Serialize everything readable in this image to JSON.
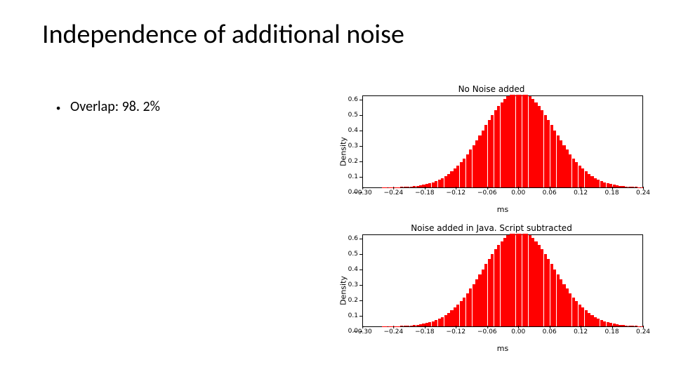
{
  "title": "Independence of additional noise",
  "bullet": {
    "overlap_label": "Overlap: 98. 2%"
  },
  "charts": {
    "xlim": [
      -0.3,
      0.24
    ],
    "ylim": [
      0.0,
      0.6
    ],
    "xlabel": "ms",
    "ylabel": "Density",
    "xticks": [
      -0.3,
      -0.24,
      -0.18,
      -0.12,
      -0.06,
      0.0,
      0.06,
      0.12,
      0.18,
      0.24
    ],
    "yticks": [
      0.0,
      0.1,
      0.2,
      0.3,
      0.4,
      0.5,
      0.6
    ],
    "bar_color": "#ff0000",
    "background_color": "#ffffff",
    "border_color": "#000000",
    "tick_fontsize": 9,
    "label_fontsize": 11,
    "title_fontsize": 12,
    "num_bins": 90,
    "gaussian": {
      "mu": 0.0,
      "sigma": 0.068,
      "peak": 0.62
    },
    "subplots": [
      {
        "title": "No Noise added"
      },
      {
        "title": "Noise added in Java. Script subtracted"
      }
    ]
  },
  "style": {
    "slide_title_fontsize": 38,
    "bullet_fontsize": 20,
    "font_family": "Calibri, Arial, sans-serif"
  }
}
